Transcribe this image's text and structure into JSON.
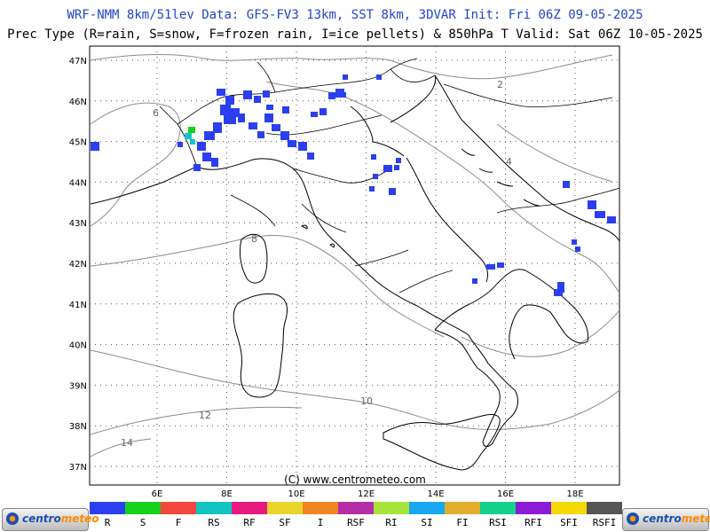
{
  "header": {
    "line1": "WRF-NMM 8km/51lev  Data: GFS-FV3 13km, SST 8km, 3DVAR  Init: Fri 06Z 09-05-2025",
    "line2": "Prec Type (R=rain, S=snow, F=frozen rain, I=ice pellets) & 850hPa T  Valid: Sat 06Z 10-05-2025"
  },
  "map": {
    "lat_labels": [
      "47N",
      "46N",
      "45N",
      "44N",
      "43N",
      "42N",
      "41N",
      "40N",
      "39N",
      "38N",
      "37N"
    ],
    "lon_labels": [
      "6E",
      "8E",
      "10E",
      "12E",
      "14E",
      "16E",
      "18E"
    ],
    "contour_labels": [
      "2",
      "4",
      "6",
      "8",
      "10",
      "12",
      "14"
    ],
    "copyright": "(C) www.centrometeo.com",
    "precip_color": "#2b3ff0"
  },
  "legend": {
    "items": [
      {
        "label": "R",
        "color": "#2b3ff0"
      },
      {
        "label": "S",
        "color": "#15d11c"
      },
      {
        "label": "F",
        "color": "#f2473c"
      },
      {
        "label": "RS",
        "color": "#12c4c4"
      },
      {
        "label": "RF",
        "color": "#e8197e"
      },
      {
        "label": "SF",
        "color": "#e8d42b"
      },
      {
        "label": "I",
        "color": "#f08524"
      },
      {
        "label": "RSF",
        "color": "#b32da6"
      },
      {
        "label": "RI",
        "color": "#a6e43a"
      },
      {
        "label": "SI",
        "color": "#1aa7f2"
      },
      {
        "label": "FI",
        "color": "#e2ad2c"
      },
      {
        "label": "RSI",
        "color": "#14d18b"
      },
      {
        "label": "RFI",
        "color": "#8a1ad6"
      },
      {
        "label": "SFI",
        "color": "#f5d800"
      },
      {
        "label": "RSFI",
        "color": "#555555"
      }
    ]
  },
  "logos": {
    "left_text_a": "centro",
    "left_text_b": "meteo",
    "right_text_a": "centro",
    "right_text_b": "meteo"
  }
}
